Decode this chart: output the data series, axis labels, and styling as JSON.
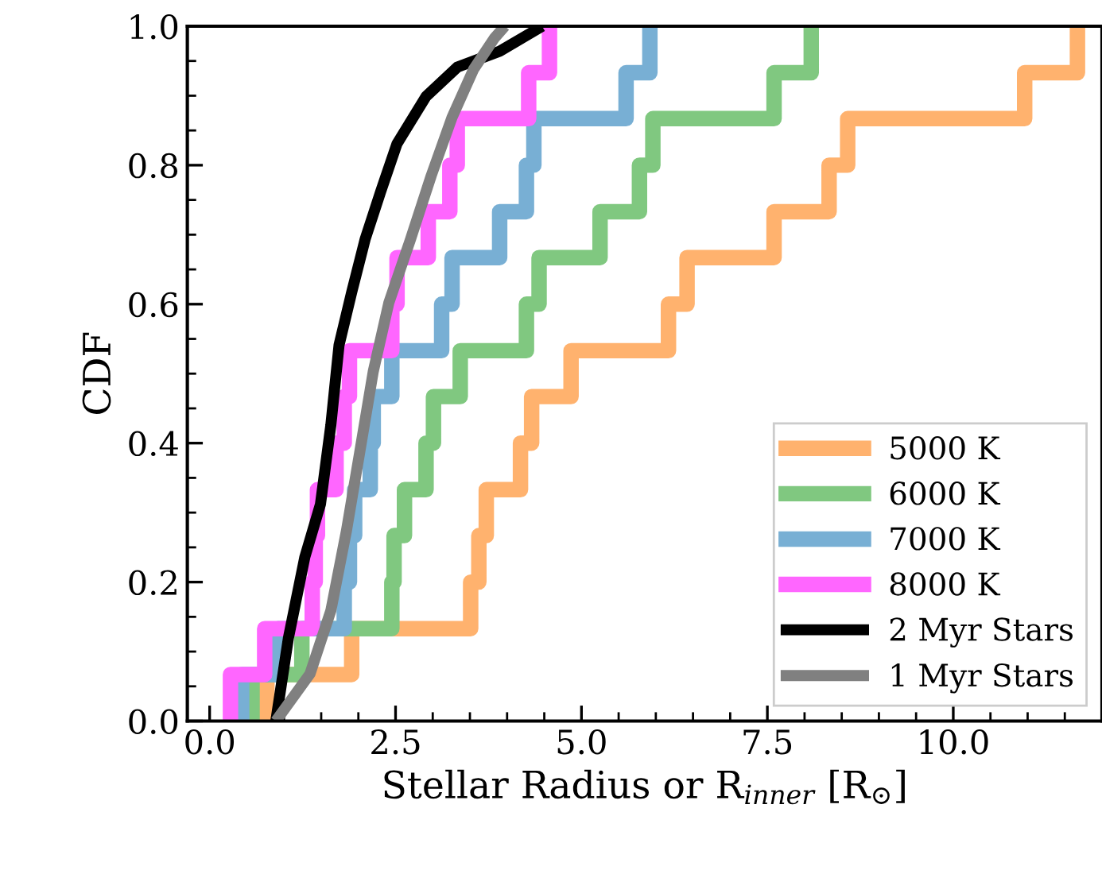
{
  "chart_data": {
    "type": "step",
    "xlabel": "Stellar Radius or R$_{inner}$ [R$_{⊙}$]",
    "ylabel": "CDF",
    "xlim": [
      -0.3,
      12.0
    ],
    "xticks": [
      {
        "value": 0,
        "label": "0.0"
      },
      2.5,
      {
        "value": 5,
        "label": "5.0"
      },
      7.5,
      {
        "value": 10,
        "label": "10.0"
      }
    ],
    "ylim": [
      0,
      1
    ],
    "yticks": [
      {
        "value": 0,
        "label": "0.0"
      },
      0.2,
      0.4,
      0.6,
      0.8,
      {
        "value": 1,
        "label": "1.0"
      }
    ],
    "grid": false,
    "legend": "bottom right",
    "marker": "none",
    "line_style": "solid",
    "series": [
      {
        "name": "5000 K",
        "color": "#ffb26e",
        "x": [
          0.77,
          0.77,
          1.91,
          3.51,
          3.62,
          3.72,
          4.18,
          4.33,
          4.86,
          6.17,
          6.42,
          7.59,
          8.33,
          8.58,
          10.96,
          11.67
        ],
        "values": [
          0,
          0.067,
          0.133,
          0.2,
          0.267,
          0.333,
          0.4,
          0.467,
          0.533,
          0.6,
          0.667,
          0.733,
          0.8,
          0.867,
          0.933,
          1.0
        ]
      },
      {
        "name": "6000 K",
        "color": "#80c880",
        "x": [
          0.57,
          0.57,
          1.24,
          2.45,
          2.48,
          2.62,
          2.91,
          3.01,
          3.37,
          4.26,
          4.43,
          5.25,
          5.78,
          5.96,
          7.59,
          8.09
        ],
        "values": [
          0,
          0.067,
          0.133,
          0.2,
          0.267,
          0.333,
          0.4,
          0.467,
          0.533,
          0.6,
          0.667,
          0.733,
          0.8,
          0.867,
          0.933,
          1.0
        ]
      },
      {
        "name": "7000 K",
        "color": "#78afd4",
        "x": [
          0.43,
          0.43,
          0.92,
          1.81,
          1.88,
          1.95,
          2.16,
          2.2,
          2.45,
          3.12,
          3.26,
          3.9,
          4.26,
          4.36,
          5.6,
          5.92
        ],
        "values": [
          0,
          0.067,
          0.133,
          0.2,
          0.267,
          0.333,
          0.4,
          0.467,
          0.533,
          0.6,
          0.667,
          0.733,
          0.8,
          0.867,
          0.933,
          1.0
        ]
      },
      {
        "name": "8000 K",
        "color": "#ff66ff",
        "x": [
          0.28,
          0.28,
          0.74,
          1.38,
          1.42,
          1.45,
          1.7,
          1.81,
          1.88,
          2.45,
          2.52,
          2.94,
          3.23,
          3.33,
          4.29,
          4.57
        ],
        "values": [
          0,
          0.067,
          0.133,
          0.2,
          0.267,
          0.333,
          0.4,
          0.467,
          0.533,
          0.6,
          0.667,
          0.733,
          0.8,
          0.867,
          0.933,
          1.0
        ]
      },
      {
        "name": "2 Myr Stars",
        "color": "#000000",
        "type": "line",
        "x": [
          0.89,
          1.06,
          1.28,
          1.49,
          1.63,
          1.74,
          1.91,
          2.09,
          2.3,
          2.52,
          2.91,
          3.33,
          3.9,
          4.33,
          4.47
        ],
        "values": [
          0,
          0.12,
          0.236,
          0.312,
          0.426,
          0.541,
          0.617,
          0.693,
          0.762,
          0.831,
          0.899,
          0.941,
          0.964,
          0.991,
          1.0
        ]
      },
      {
        "name": "1 Myr Stars",
        "color": "#808080",
        "type": "line",
        "x": [
          0.89,
          1.35,
          1.63,
          1.84,
          2.02,
          2.2,
          2.41,
          2.7,
          2.98,
          3.26,
          3.55,
          3.83,
          3.97
        ],
        "values": [
          0,
          0.068,
          0.159,
          0.274,
          0.388,
          0.503,
          0.602,
          0.693,
          0.785,
          0.869,
          0.938,
          0.983,
          1.0
        ]
      }
    ]
  }
}
